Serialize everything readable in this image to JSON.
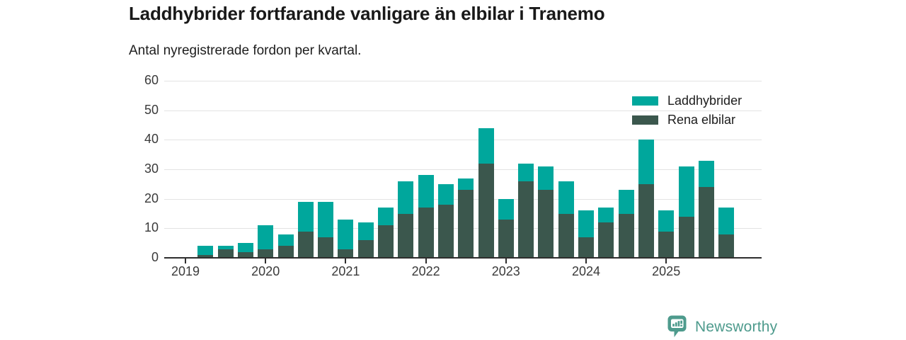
{
  "title": "Laddhybrider fortfarande vanligare än elbilar i Tranemo",
  "subtitle": "Antal nyregistrerade fordon per kvartal.",
  "legend": {
    "laddhybrider": "Laddhybrider",
    "rena_elbilar": "Rena elbilar"
  },
  "footer": {
    "brand": "Newsworthy"
  },
  "colors": {
    "laddhybrider": "#00a79c",
    "rena_elbilar": "#3b574d",
    "grid": "#e3e3e3",
    "axis": "#2e2e2e",
    "text": "#1a1a1a",
    "brand": "#4e9b8d"
  },
  "chart_data": {
    "type": "bar",
    "stacked": true,
    "title": "Laddhybrider fortfarande vanligare än elbilar i Tranemo",
    "subtitle": "Antal nyregistrerade fordon per kvartal.",
    "xlabel": "",
    "ylabel": "",
    "ylim": [
      0,
      60
    ],
    "yticks": [
      0,
      10,
      20,
      30,
      40,
      50,
      60
    ],
    "grid": true,
    "legend_position": "top-right",
    "x_tick_labels": [
      "2019",
      "2020",
      "2021",
      "2022",
      "2023",
      "2024",
      "2025"
    ],
    "categories": [
      "2019 K1",
      "2019 K2",
      "2019 K3",
      "2019 K4",
      "2020 K1",
      "2020 K2",
      "2020 K3",
      "2020 K4",
      "2021 K1",
      "2021 K2",
      "2021 K3",
      "2021 K4",
      "2022 K1",
      "2022 K2",
      "2022 K3",
      "2022 K4",
      "2023 K1",
      "2023 K2",
      "2023 K3",
      "2023 K4",
      "2024 K1",
      "2024 K2",
      "2024 K3",
      "2024 K4",
      "2025 K1",
      "2025 K2",
      "2025 K3",
      "2025 K4"
    ],
    "series": [
      {
        "name": "Laddhybrider",
        "stack": "top",
        "color": "#00a79c",
        "values": [
          0,
          3,
          1,
          3,
          8,
          4,
          10,
          12,
          10,
          6,
          6,
          11,
          11,
          7,
          4,
          12,
          7,
          6,
          8,
          11,
          9,
          5,
          8,
          15,
          7,
          17,
          9,
          9
        ]
      },
      {
        "name": "Rena elbilar",
        "stack": "bottom",
        "color": "#3b574d",
        "values": [
          0,
          1,
          3,
          2,
          3,
          4,
          9,
          7,
          3,
          6,
          11,
          15,
          17,
          18,
          23,
          32,
          13,
          26,
          23,
          15,
          7,
          12,
          15,
          25,
          9,
          14,
          24,
          8
        ]
      }
    ],
    "totals": [
      0,
      4,
      4,
      5,
      11,
      8,
      19,
      19,
      13,
      12,
      17,
      26,
      28,
      25,
      27,
      44,
      20,
      32,
      31,
      26,
      16,
      17,
      23,
      40,
      16,
      31,
      33,
      17
    ]
  }
}
